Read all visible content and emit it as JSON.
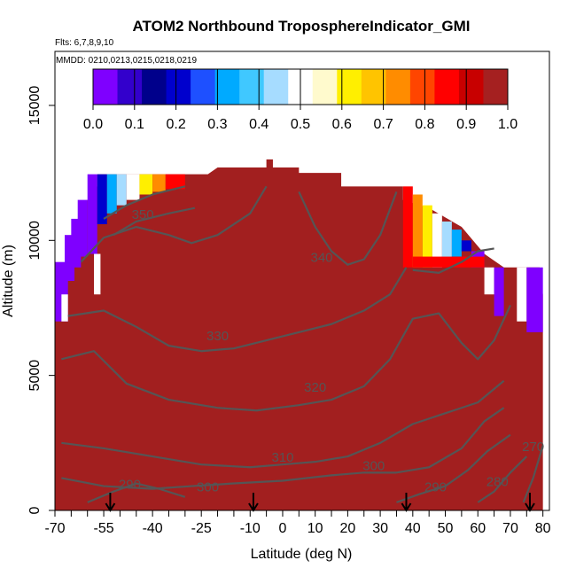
{
  "chart_data": {
    "type": "heatmap",
    "title": "ATOM2 Northbound TroposphereIndicator_GMI",
    "flights_label": "Flts: 6,7,8,9,10",
    "dates_label": "MMDD: 0210,0213,0215,0218,0219",
    "xlabel": "Latitude (deg N)",
    "ylabel": "Altitude (m)",
    "xlim": [
      -70,
      82
    ],
    "ylim": [
      0,
      17000
    ],
    "x_ticks": [
      "-70",
      "-55",
      "-40",
      "-25",
      "-10",
      "0",
      "10",
      "20",
      "30",
      "40",
      "50",
      "60",
      "70",
      "80"
    ],
    "x_tick_values": [
      -70,
      -55,
      -40,
      -25,
      -10,
      0,
      10,
      20,
      30,
      40,
      50,
      60,
      70,
      80
    ],
    "y_ticks": [
      "0",
      "5000",
      "10000",
      "15000"
    ],
    "y_tick_values": [
      0,
      5000,
      10000,
      15000
    ],
    "colorbar": {
      "ticks": [
        "0.0",
        "0.1",
        "0.2",
        "0.3",
        "0.4",
        "0.5",
        "0.6",
        "0.7",
        "0.8",
        "0.9",
        "1.0"
      ],
      "range": [
        0,
        1
      ],
      "colors": [
        "#7f00ff",
        "#3300cc",
        "#00008b",
        "#0000cd",
        "#1e50ff",
        "#00aaff",
        "#40c8ff",
        "#a6dcff",
        "#ffffff",
        "#fffacd",
        "#ffef00",
        "#ffc400",
        "#ff8c00",
        "#ff4500",
        "#ff0000",
        "#c80000",
        "#a52020"
      ]
    },
    "fill_color_high": "#a21f1f",
    "contour_color": "#555555",
    "contour_labels": [
      {
        "text": "350",
        "lat": -43,
        "alt": 10800
      },
      {
        "text": "340",
        "lat": 12,
        "alt": 9200
      },
      {
        "text": "330",
        "lat": -20,
        "alt": 6300
      },
      {
        "text": "320",
        "lat": 10,
        "alt": 4400
      },
      {
        "text": "310",
        "lat": 0,
        "alt": 1800
      },
      {
        "text": "300",
        "lat": 28,
        "alt": 1500
      },
      {
        "text": "300",
        "lat": -23,
        "alt": 700
      },
      {
        "text": "290",
        "lat": -47,
        "alt": 800
      },
      {
        "text": "290",
        "lat": 47,
        "alt": 700
      },
      {
        "text": "280",
        "lat": 66,
        "alt": 900
      },
      {
        "text": "270",
        "lat": 77,
        "alt": 2200
      }
    ],
    "contours": [
      {
        "level": 350,
        "points": [
          [
            -55,
            10800
          ],
          [
            -48,
            11300
          ],
          [
            -40,
            11700
          ],
          [
            -30,
            12000
          ]
        ]
      },
      {
        "level": 350,
        "points": [
          [
            -52,
            10200
          ],
          [
            -45,
            10700
          ],
          [
            -35,
            11000
          ],
          [
            -27,
            11200
          ]
        ]
      },
      {
        "level": 340,
        "points": [
          [
            -62,
            9200
          ],
          [
            -55,
            10100
          ],
          [
            -45,
            10500
          ],
          [
            -35,
            10200
          ],
          [
            -28,
            9900
          ],
          [
            -20,
            10200
          ],
          [
            -10,
            11000
          ],
          [
            -5,
            12000
          ]
        ]
      },
      {
        "level": 340,
        "points": [
          [
            5,
            11800
          ],
          [
            10,
            10500
          ],
          [
            15,
            9600
          ],
          [
            20,
            9100
          ],
          [
            25,
            9300
          ],
          [
            30,
            10200
          ],
          [
            35,
            11800
          ]
        ]
      },
      {
        "level": 340,
        "points": [
          [
            40,
            8900
          ],
          [
            48,
            8800
          ],
          [
            55,
            9200
          ],
          [
            60,
            9600
          ],
          [
            65,
            9700
          ]
        ]
      },
      {
        "level": 330,
        "points": [
          [
            -66,
            7200
          ],
          [
            -55,
            7400
          ],
          [
            -45,
            6800
          ],
          [
            -35,
            6100
          ],
          [
            -25,
            5900
          ],
          [
            -15,
            6000
          ],
          [
            -5,
            6300
          ],
          [
            5,
            6600
          ],
          [
            15,
            6900
          ],
          [
            25,
            7400
          ],
          [
            33,
            8000
          ],
          [
            38,
            9000
          ]
        ]
      },
      {
        "level": 320,
        "points": [
          [
            -68,
            5600
          ],
          [
            -58,
            5900
          ],
          [
            -48,
            4700
          ],
          [
            -35,
            4100
          ],
          [
            -20,
            3800
          ],
          [
            -8,
            3700
          ],
          [
            5,
            3900
          ],
          [
            15,
            4100
          ],
          [
            25,
            4600
          ],
          [
            33,
            5600
          ],
          [
            40,
            7100
          ],
          [
            48,
            7300
          ],
          [
            55,
            6200
          ],
          [
            60,
            5600
          ],
          [
            65,
            6300
          ],
          [
            70,
            7600
          ]
        ]
      },
      {
        "level": 310,
        "points": [
          [
            -68,
            2500
          ],
          [
            -55,
            2300
          ],
          [
            -40,
            2000
          ],
          [
            -25,
            1700
          ],
          [
            -10,
            1600
          ],
          [
            0,
            1700
          ],
          [
            10,
            1800
          ],
          [
            20,
            2000
          ],
          [
            30,
            2500
          ],
          [
            40,
            3200
          ],
          [
            50,
            3600
          ],
          [
            60,
            4000
          ],
          [
            68,
            4800
          ]
        ]
      },
      {
        "level": 300,
        "points": [
          [
            -68,
            1200
          ],
          [
            -55,
            900
          ],
          [
            -40,
            800
          ],
          [
            -28,
            900
          ],
          [
            -15,
            1000
          ],
          [
            0,
            1100
          ],
          [
            15,
            1300
          ],
          [
            25,
            1400
          ],
          [
            35,
            1400
          ],
          [
            45,
            1600
          ],
          [
            55,
            2300
          ],
          [
            62,
            3300
          ],
          [
            68,
            3800
          ]
        ]
      },
      {
        "level": 290,
        "points": [
          [
            -60,
            300
          ],
          [
            -52,
            700
          ],
          [
            -45,
            1000
          ],
          [
            -38,
            800
          ],
          [
            -30,
            500
          ]
        ]
      },
      {
        "level": 290,
        "points": [
          [
            35,
            300
          ],
          [
            42,
            600
          ],
          [
            50,
            900
          ],
          [
            57,
            1500
          ],
          [
            63,
            2200
          ],
          [
            70,
            2800
          ]
        ]
      },
      {
        "level": 280,
        "points": [
          [
            60,
            300
          ],
          [
            65,
            700
          ],
          [
            70,
            1400
          ],
          [
            75,
            2000
          ]
        ]
      },
      {
        "level": 270,
        "points": [
          [
            74,
            300
          ],
          [
            77,
            1200
          ],
          [
            80,
            2400
          ]
        ]
      }
    ],
    "flight_markers_lat": [
      -53,
      -9,
      38,
      76
    ]
  }
}
